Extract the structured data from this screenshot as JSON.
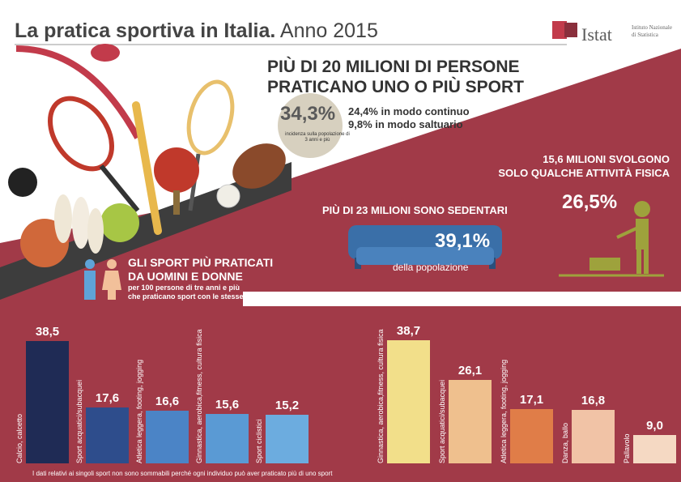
{
  "header": {
    "title_bold": "La pratica sportiva in Italia.",
    "title_year": "Anno 2015",
    "logo": "Istat",
    "logo_sub": "Istituto Nazionale di Statistica"
  },
  "overview": {
    "headline_1": "PIÙ DI 20 MILIONI DI PERSONE",
    "headline_2": "PRATICANO UNO O PIÙ SPORT",
    "share": "34,3%",
    "share_note": "incidenza sulla popolazione di 3 anni e più",
    "continuous": "24,4% in modo continuo",
    "occasional": "9,8% in modo saltuario"
  },
  "physical_activity": {
    "headline_1": "15,6 MILIONI SVOLGONO",
    "headline_2": "SOLO QUALCHE ATTIVITÀ FISICA",
    "share": "26,5%"
  },
  "sedentary": {
    "headline": "PIÙ DI 23 MILIONI SONO SEDENTARI",
    "share": "39,1%",
    "sub": "della popolazione"
  },
  "sports_section": {
    "headline_1": "GLI SPORT PIÙ PRATICATI",
    "headline_2": "DA UOMINI E DONNE",
    "sub_1": "per 100 persone di tre anni e più",
    "sub_2": "che praticano sport con le stesse caratteristiche"
  },
  "chart_data": [
    {
      "type": "bar",
      "group": "uomini",
      "categories": [
        "Calcio, calcetto",
        "Sport acquatici/subacquei",
        "Atletica leggera, footing, jogging",
        "Ginnastica, aerobica,fitness, cultura fisica",
        "Sport ciclistici"
      ],
      "values": [
        38.5,
        17.6,
        16.6,
        15.6,
        15.2
      ],
      "value_labels": [
        "38,5",
        "17,6",
        "16,6",
        "15,6",
        "15,2"
      ],
      "colors": [
        "#1f2b55",
        "#2e4d8c",
        "#4b84c6",
        "#5a9ad4",
        "#6cacdf"
      ]
    },
    {
      "type": "bar",
      "group": "donne",
      "categories": [
        "Ginnastica, aerobica,fitness, cultura fisica",
        "Sport acquatici/subacquei",
        "Atletica leggera, footing, jogging",
        "Danza, ballo",
        "Pallavolo"
      ],
      "values": [
        38.7,
        26.1,
        17.1,
        16.8,
        9.0
      ],
      "value_labels": [
        "38,7",
        "26,1",
        "17,1",
        "16,8",
        "9,0"
      ],
      "colors": [
        "#f2df8a",
        "#efc08e",
        "#e07d48",
        "#f1c3a6",
        "#f5d9c3"
      ]
    }
  ],
  "footnote": "I dati relativi ai singoli sport non sono sommabili perché ogni individuo può aver praticato più di uno sport",
  "colors": {
    "maroon": "#a13a48",
    "dark_maroon": "#8a2f3c",
    "sofa": "#3a6fa8",
    "green": "#9ea23c"
  }
}
